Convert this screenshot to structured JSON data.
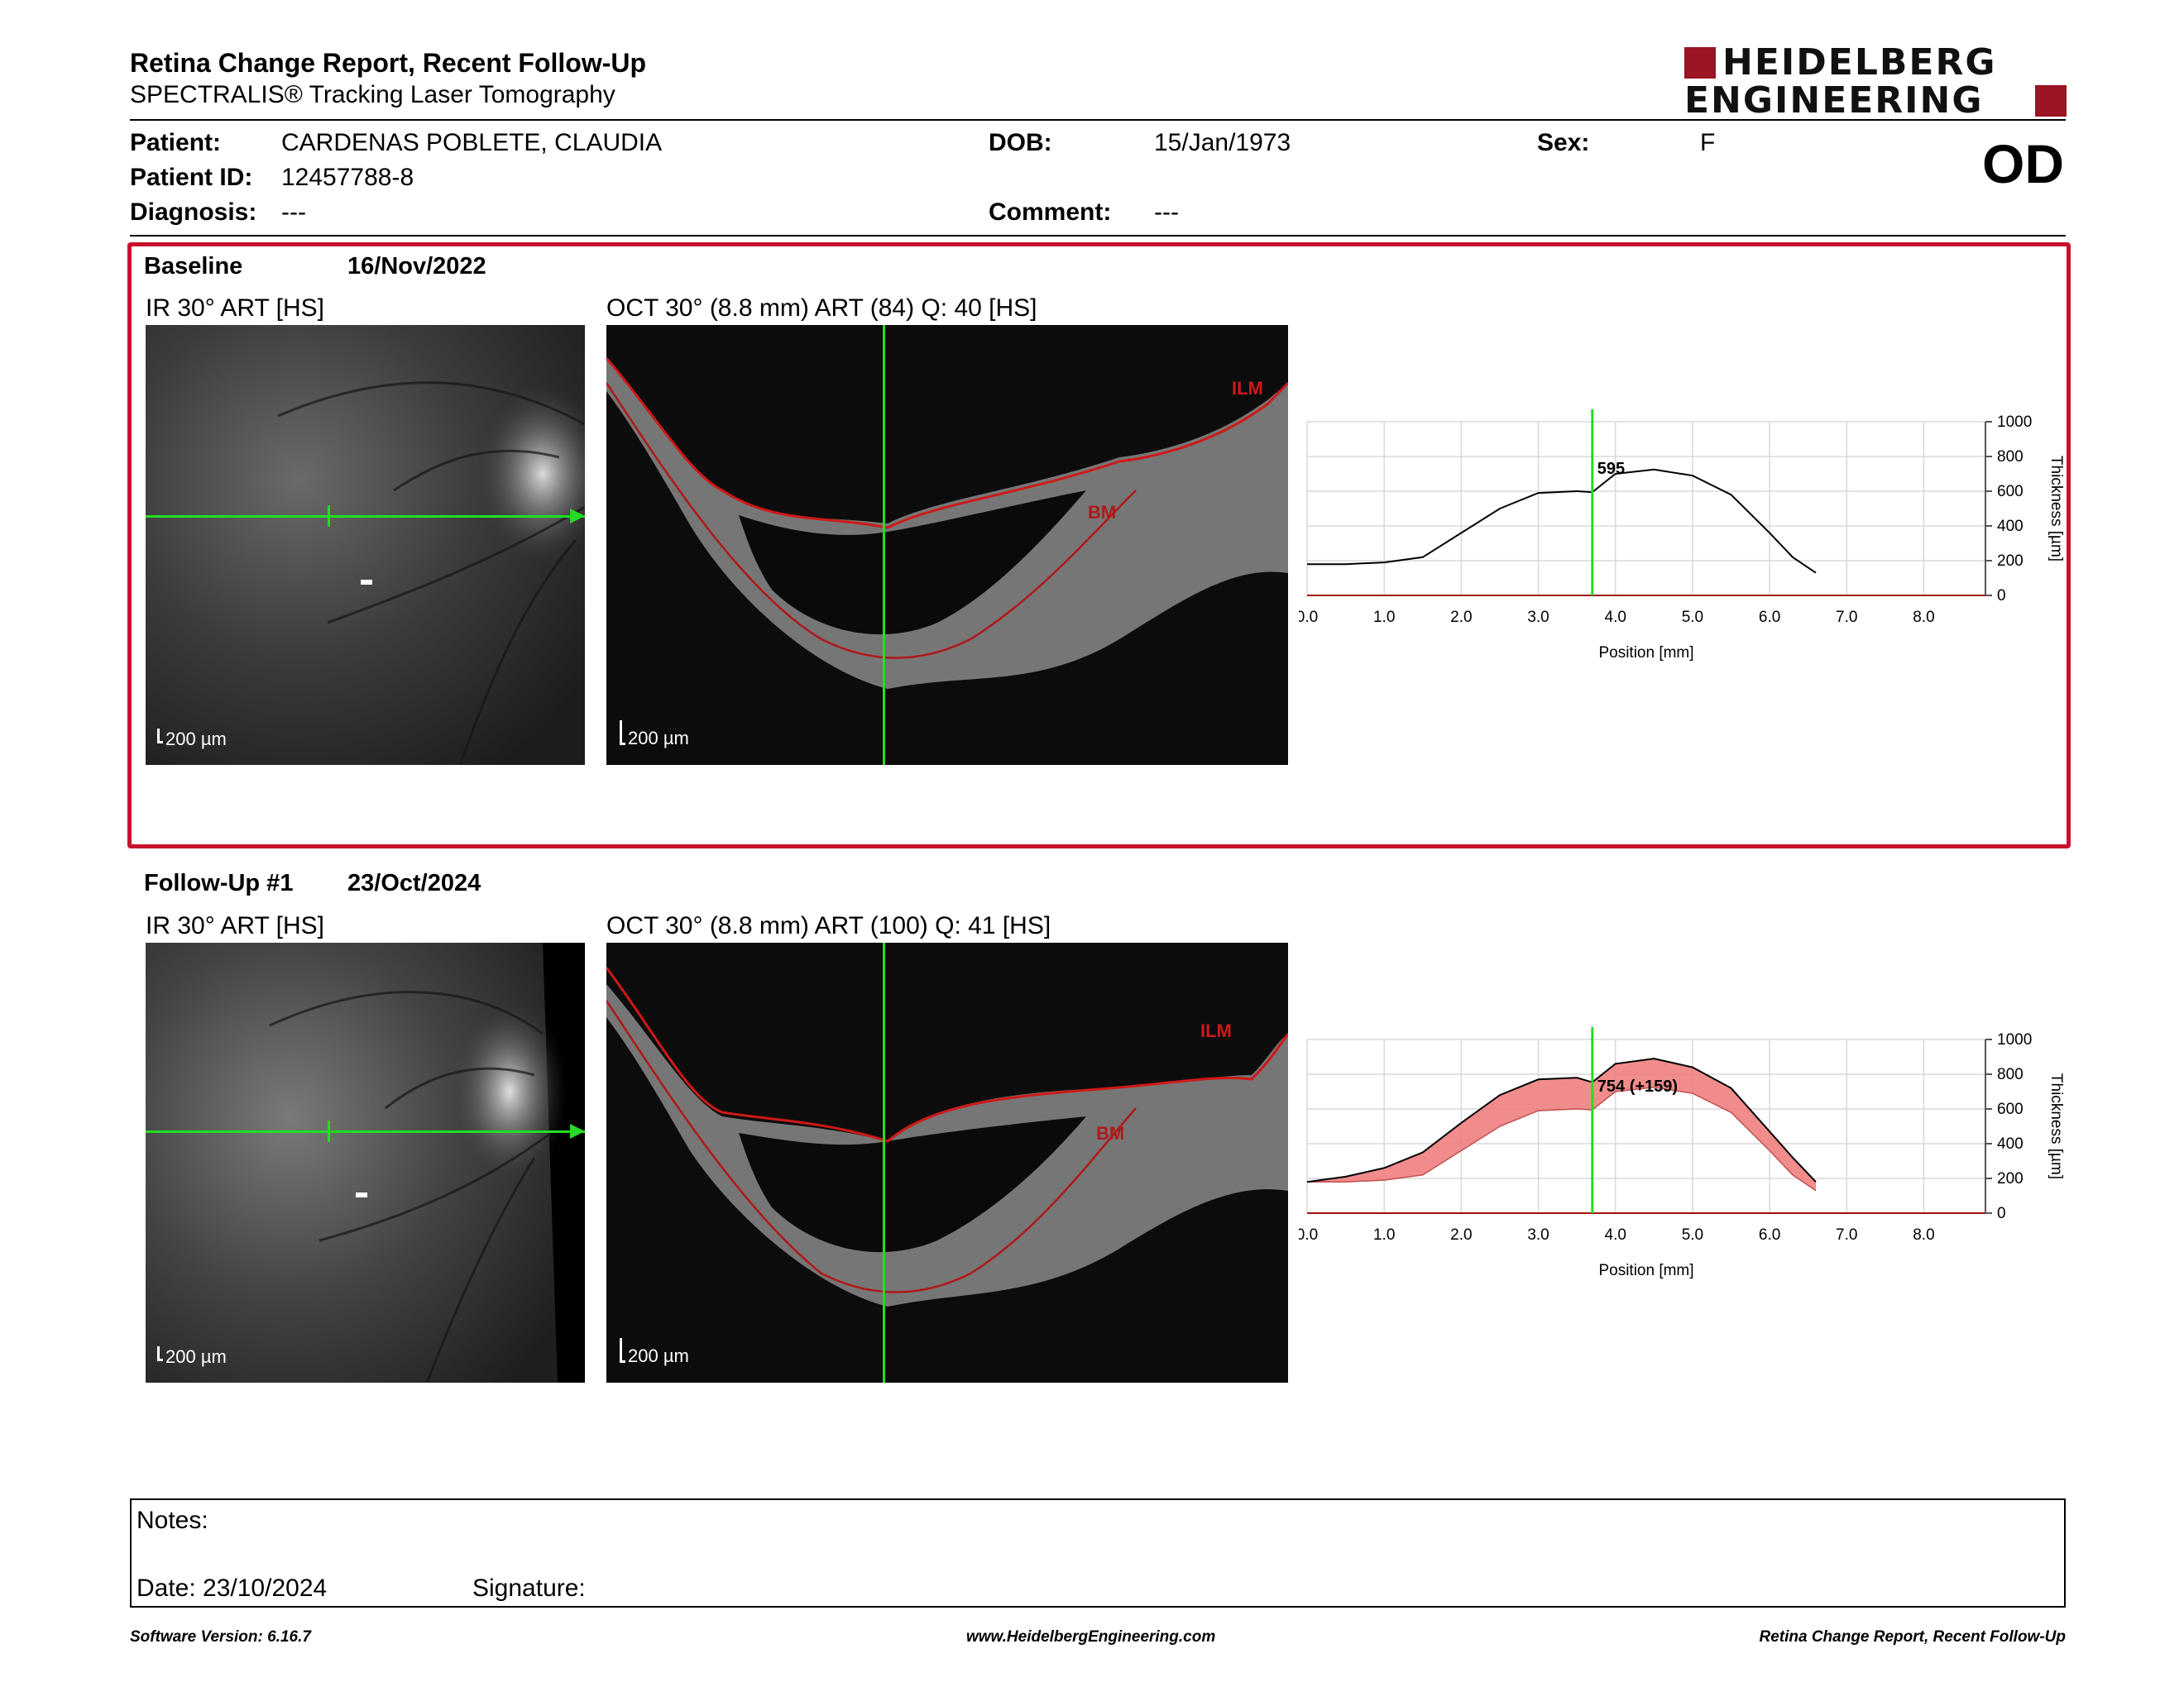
{
  "header": {
    "title": "Retina Change Report, Recent Follow-Up",
    "subtitle": "SPECTRALIS® Tracking Laser Tomography",
    "logo_line1": "HEIDELBERG",
    "logo_line2": "ENGINEERING"
  },
  "patient": {
    "patient_label": "Patient:",
    "patient_value": "CARDENAS POBLETE, CLAUDIA",
    "id_label": "Patient ID:",
    "id_value": "12457788-8",
    "diagnosis_label": "Diagnosis:",
    "diagnosis_value": "---",
    "dob_label": "DOB:",
    "dob_value": "15/Jan/1973",
    "comment_label": "Comment:",
    "comment_value": "---",
    "sex_label": "Sex:",
    "sex_value": "F",
    "eye": "OD"
  },
  "baseline": {
    "label": "Baseline",
    "date": "16/Nov/2022",
    "ir_label": "IR 30° ART [HS]",
    "oct_label": "OCT 30° (8.8 mm) ART (84) Q: 40 [HS]",
    "scale_ir": "200 µm",
    "scale_oct": "200 µm",
    "ilm": "ILM",
    "bm": "BM",
    "marker_value": "595"
  },
  "followup": {
    "label": "Follow-Up #1",
    "date": "23/Oct/2024",
    "ir_label": "IR 30° ART [HS]",
    "oct_label": "OCT 30° (8.8 mm) ART (100) Q: 41 [HS]",
    "scale_ir": "200 µm",
    "scale_oct": "200 µm",
    "ilm": "ILM",
    "bm": "BM",
    "marker_value": "754 (+159)"
  },
  "chart_data": [
    {
      "type": "line",
      "xlabel": "Position [mm]",
      "ylabel": "Thickness [µm]",
      "xlim": [
        0,
        8.8
      ],
      "ylim": [
        0,
        1000
      ],
      "xticks": [
        "0.0",
        "1.0",
        "2.0",
        "3.0",
        "4.0",
        "5.0",
        "6.0",
        "7.0",
        "8.0"
      ],
      "yticks": [
        "0",
        "200",
        "400",
        "600",
        "800",
        "1000"
      ],
      "marker_x": 3.7,
      "marker_label": "595",
      "grid": true,
      "series": [
        {
          "x": [
            0,
            0.5,
            1.0,
            1.5,
            2.0,
            2.5,
            3.0,
            3.5,
            3.7,
            4.0,
            4.5,
            5.0,
            5.5,
            6.0,
            6.3,
            6.6
          ],
          "values": [
            180,
            180,
            190,
            220,
            360,
            500,
            590,
            600,
            595,
            700,
            725,
            690,
            580,
            360,
            220,
            130
          ]
        }
      ]
    },
    {
      "type": "area",
      "xlabel": "Position [mm]",
      "ylabel": "Thickness [µm]",
      "xlim": [
        0,
        8.8
      ],
      "ylim": [
        0,
        1000
      ],
      "xticks": [
        "0.0",
        "1.0",
        "2.0",
        "3.0",
        "4.0",
        "5.0",
        "6.0",
        "7.0",
        "8.0"
      ],
      "yticks": [
        "0",
        "200",
        "400",
        "600",
        "800",
        "1000"
      ],
      "marker_x": 3.7,
      "marker_label": "754 (+159)",
      "grid": true,
      "series": [
        {
          "x": [
            0,
            0.5,
            1.0,
            1.5,
            2.0,
            2.5,
            3.0,
            3.5,
            3.7,
            4.0,
            4.5,
            5.0,
            5.5,
            6.0,
            6.3,
            6.6
          ],
          "values": [
            180,
            210,
            260,
            350,
            520,
            680,
            770,
            780,
            754,
            860,
            890,
            840,
            720,
            470,
            320,
            180
          ]
        },
        {
          "x": [
            0,
            0.5,
            1.0,
            1.5,
            2.0,
            2.5,
            3.0,
            3.5,
            3.7,
            4.0,
            4.5,
            5.0,
            5.5,
            6.0,
            6.3,
            6.6
          ],
          "values": [
            180,
            180,
            190,
            220,
            360,
            500,
            590,
            600,
            595,
            700,
            725,
            690,
            580,
            360,
            220,
            130
          ]
        }
      ]
    }
  ],
  "notes": {
    "notes_label": "Notes:",
    "date_label": "Date: 23/10/2024",
    "signature_label": "Signature:"
  },
  "footer": {
    "software": "Software Version: 6.16.7",
    "website": "www.HeidelbergEngineering.com",
    "report": "Retina Change Report, Recent Follow-Up"
  },
  "colors": {
    "accent": "#c8102e",
    "scan_line": "#22dd22",
    "diff_fill": "#f08080"
  }
}
